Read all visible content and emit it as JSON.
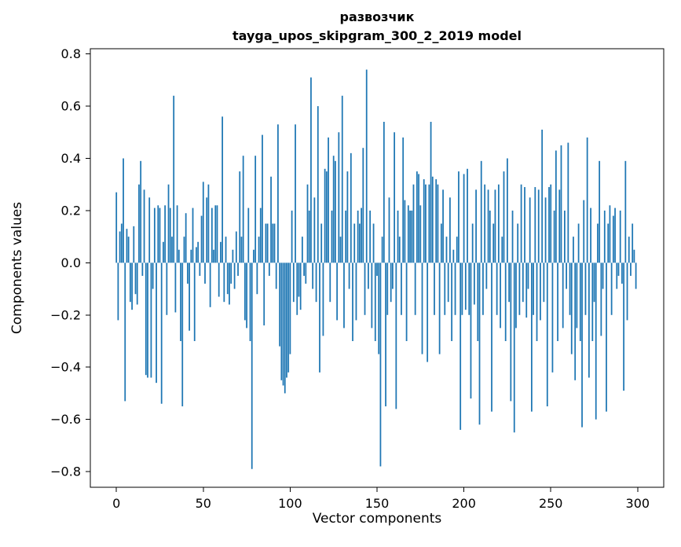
{
  "page": {
    "background": "#ffffff"
  },
  "chart_data": {
    "type": "bar",
    "title": "развозчик",
    "subtitle": "tayga_upos_skipgram_300_2_2019 model",
    "xlabel": "Vector components",
    "ylabel": "Components values",
    "x_ticks": [
      0,
      50,
      100,
      150,
      200,
      250,
      300
    ],
    "x_tick_labels": [
      "0",
      "50",
      "100",
      "150",
      "200",
      "250",
      "300"
    ],
    "y_ticks": [
      0.8,
      0.6,
      0.4,
      0.2,
      0.0,
      -0.2,
      -0.4,
      -0.6,
      -0.8
    ],
    "y_tick_labels": [
      "0.8",
      "0.6",
      "0.4",
      "0.2",
      "0.0",
      "−0.2",
      "−0.4",
      "−0.6",
      "−0.8"
    ],
    "xlim": [
      -15,
      315
    ],
    "ylim": [
      -0.86,
      0.82
    ],
    "bar_color": "#1f77b4",
    "grid": false,
    "legend": "none",
    "x_start": 0,
    "values": [
      0.27,
      -0.22,
      0.12,
      0.15,
      0.4,
      -0.53,
      0.13,
      0.1,
      -0.15,
      -0.18,
      0.14,
      -0.12,
      -0.16,
      0.3,
      0.39,
      -0.05,
      0.28,
      -0.43,
      -0.44,
      0.25,
      -0.44,
      -0.1,
      0.21,
      -0.46,
      0.22,
      0.21,
      -0.54,
      0.08,
      0.22,
      -0.2,
      0.3,
      0.21,
      0.1,
      0.64,
      -0.19,
      0.22,
      0.05,
      -0.3,
      -0.55,
      0.1,
      0.19,
      -0.08,
      -0.26,
      0.05,
      0.21,
      -0.3,
      0.06,
      0.08,
      -0.05,
      0.18,
      0.31,
      -0.08,
      0.25,
      0.3,
      -0.17,
      0.21,
      0.05,
      0.22,
      0.22,
      -0.13,
      0.08,
      0.56,
      -0.15,
      0.1,
      -0.12,
      -0.16,
      -0.08,
      0.05,
      -0.1,
      0.12,
      -0.05,
      0.35,
      0.1,
      0.41,
      -0.22,
      -0.25,
      0.21,
      -0.3,
      -0.79,
      0.05,
      0.41,
      -0.12,
      0.1,
      0.21,
      0.49,
      -0.24,
      0.15,
      0.15,
      -0.05,
      0.33,
      0.15,
      0.15,
      -0.1,
      0.53,
      -0.32,
      -0.45,
      -0.47,
      -0.5,
      -0.44,
      -0.42,
      -0.35,
      0.2,
      -0.15,
      0.53,
      -0.2,
      -0.13,
      -0.18,
      0.1,
      -0.05,
      -0.08,
      0.3,
      0.2,
      0.71,
      -0.1,
      0.25,
      -0.15,
      0.6,
      -0.42,
      0.15,
      -0.28,
      0.36,
      0.35,
      0.48,
      -0.15,
      0.2,
      0.41,
      0.39,
      -0.22,
      0.5,
      0.1,
      0.64,
      -0.25,
      0.2,
      0.35,
      -0.1,
      0.42,
      -0.3,
      0.15,
      -0.22,
      0.2,
      0.15,
      0.21,
      0.44,
      -0.2,
      0.74,
      -0.1,
      0.2,
      -0.25,
      0.15,
      -0.3,
      -0.05,
      -0.35,
      -0.78,
      0.1,
      0.54,
      -0.55,
      -0.2,
      0.25,
      -0.15,
      -0.1,
      0.5,
      -0.56,
      0.2,
      0.1,
      -0.2,
      0.48,
      0.24,
      -0.3,
      0.22,
      0.2,
      0.2,
      0.3,
      -0.2,
      0.35,
      0.34,
      0.22,
      -0.35,
      0.32,
      0.3,
      -0.38,
      0.3,
      0.54,
      0.33,
      -0.2,
      0.32,
      0.3,
      -0.35,
      0.15,
      0.28,
      -0.2,
      0.1,
      -0.15,
      0.25,
      -0.3,
      0.05,
      -0.2,
      0.1,
      0.35,
      -0.64,
      -0.2,
      0.34,
      -0.18,
      0.36,
      -0.2,
      -0.52,
      0.15,
      -0.16,
      0.28,
      -0.3,
      -0.62,
      0.39,
      -0.2,
      0.3,
      -0.1,
      0.28,
      0.2,
      -0.57,
      0.15,
      0.28,
      -0.2,
      0.3,
      -0.25,
      0.1,
      0.35,
      -0.3,
      0.4,
      -0.15,
      -0.53,
      0.2,
      -0.65,
      -0.25,
      0.15,
      -0.2,
      0.3,
      -0.15,
      0.29,
      -0.21,
      -0.1,
      0.25,
      -0.57,
      -0.2,
      0.29,
      -0.3,
      0.28,
      -0.22,
      0.51,
      -0.15,
      0.25,
      -0.55,
      0.29,
      0.3,
      -0.42,
      0.2,
      0.43,
      -0.3,
      0.28,
      0.45,
      -0.25,
      0.2,
      -0.1,
      0.46,
      -0.2,
      -0.35,
      0.1,
      -0.45,
      -0.25,
      0.15,
      -0.3,
      -0.63,
      0.24,
      -0.2,
      0.48,
      -0.44,
      0.21,
      -0.3,
      -0.15,
      -0.6,
      0.15,
      0.39,
      -0.28,
      -0.1,
      0.2,
      -0.57,
      0.15,
      0.22,
      -0.2,
      0.18,
      0.21,
      -0.1,
      -0.05,
      0.2,
      -0.08,
      -0.49,
      0.39,
      -0.22,
      0.1,
      -0.05,
      0.15,
      0.05,
      -0.1
    ]
  }
}
